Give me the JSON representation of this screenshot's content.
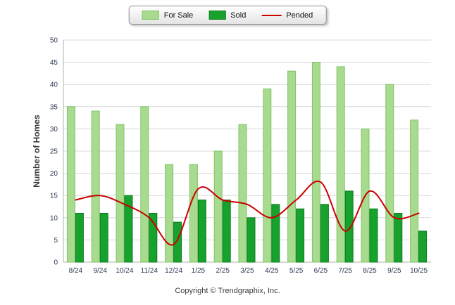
{
  "footer": {
    "copyright": "Copyright © Trendgraphix, Inc."
  },
  "chart_data": {
    "type": "bar",
    "title": "",
    "xlabel": "",
    "ylabel": "Number of Homes",
    "ylim": [
      0,
      50
    ],
    "ytick_step": 5,
    "grid": true,
    "legend_position": "top",
    "categories": [
      "8/24",
      "9/24",
      "10/24",
      "11/24",
      "12/24",
      "1/25",
      "2/25",
      "3/25",
      "4/25",
      "5/25",
      "6/25",
      "7/25",
      "8/25",
      "9/25",
      "10/25"
    ],
    "series": [
      {
        "name": "For Sale",
        "type": "bar",
        "color": "#a8db8f",
        "border_color": "#7fc463",
        "values": [
          35,
          34,
          31,
          35,
          22,
          22,
          25,
          31,
          39,
          43,
          45,
          44,
          30,
          40,
          32
        ]
      },
      {
        "name": "Sold",
        "type": "bar",
        "color": "#17a22e",
        "border_color": "#0e7d22",
        "values": [
          11,
          11,
          15,
          11,
          9,
          14,
          14,
          10,
          13,
          12,
          13,
          16,
          12,
          11,
          7
        ]
      },
      {
        "name": "Pended",
        "type": "line",
        "color": "#cc0000",
        "values": [
          14,
          15,
          13,
          10,
          4,
          16.5,
          14,
          13,
          10,
          14,
          18,
          7,
          16,
          10,
          11
        ]
      }
    ]
  }
}
